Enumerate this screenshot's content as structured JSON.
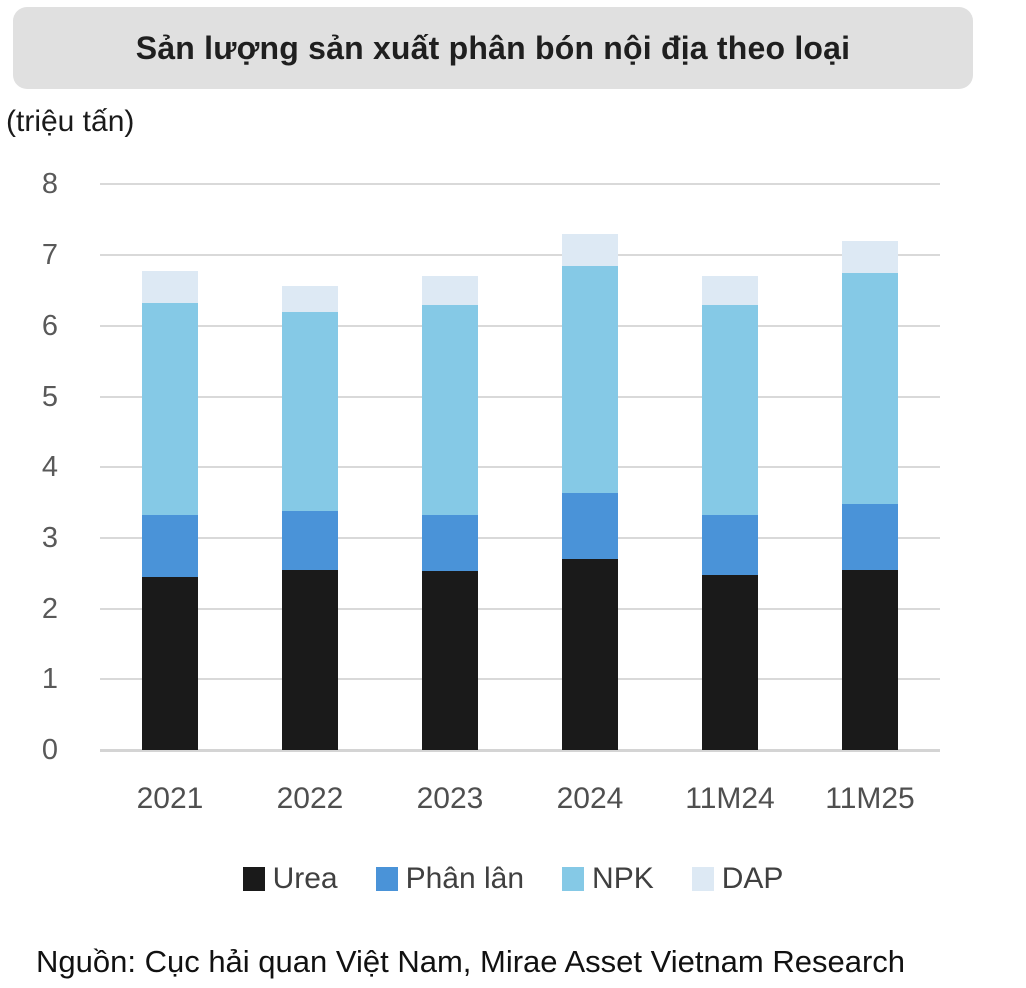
{
  "title": "Sản lượng sản xuất phân bón nội địa theo loại",
  "unit_label": "(triệu tấn)",
  "source": "Nguồn: Cục hải quan Việt Nam, Mirae Asset Vietnam Research",
  "colors": {
    "title_chip_bg": "#e0e0e0",
    "gridline": "#d9d9d9",
    "axis_text": "#595959",
    "xaxis_text": "#4f4f4f",
    "legend_text": "#404040",
    "urea": "#1a1a1a",
    "phan_lan": "#4a93d8",
    "npk": "#85c9e6",
    "dap": "#dde9f4"
  },
  "chart_data": {
    "type": "bar",
    "stacked": true,
    "title": "Sản lượng sản xuất phân bón nội địa theo loại",
    "xlabel": "",
    "ylabel": "(triệu tấn)",
    "categories": [
      "2021",
      "2022",
      "2023",
      "2024",
      "11M24",
      "11M25"
    ],
    "series": [
      {
        "name": "Urea",
        "color": "#1a1a1a",
        "values": [
          2.45,
          2.55,
          2.53,
          2.7,
          2.48,
          2.55
        ]
      },
      {
        "name": "Phân lân",
        "color": "#4a93d8",
        "values": [
          0.88,
          0.83,
          0.8,
          0.93,
          0.85,
          0.93
        ]
      },
      {
        "name": "NPK",
        "color": "#85c9e6",
        "values": [
          3.0,
          2.82,
          2.97,
          3.22,
          2.97,
          3.27
        ]
      },
      {
        "name": "DAP",
        "color": "#dde9f4",
        "values": [
          0.45,
          0.37,
          0.4,
          0.45,
          0.4,
          0.45
        ]
      }
    ],
    "totals": [
      6.78,
      6.57,
      6.7,
      7.3,
      6.7,
      7.2
    ],
    "ylim": [
      0,
      8
    ],
    "yticks": [
      0,
      1,
      2,
      3,
      4,
      5,
      6,
      7,
      8
    ],
    "grid": true,
    "legend_position": "bottom"
  }
}
